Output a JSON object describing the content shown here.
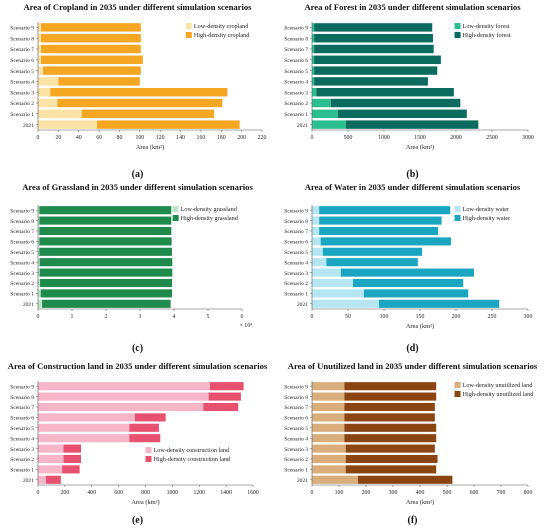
{
  "chart_data": [
    {
      "type": "bar",
      "orientation": "horizontal",
      "stacked": true,
      "panel_label": "(a)",
      "title": "Area of Cropland in 2035 under different simulation scenarios",
      "xlabel": "Area (km²)",
      "ylabel": "",
      "categories": [
        "2021",
        "Scenario 1",
        "Scenario 2",
        "Scenario 3",
        "Scenario 4",
        "Scenario 5",
        "Scenario 6",
        "Scenario 7",
        "Scenario 8",
        "Scenario 9"
      ],
      "xlim": [
        0,
        220
      ],
      "xticks": [
        "0",
        "20",
        "40",
        "60",
        "80",
        "100",
        "120",
        "140",
        "160",
        "180",
        "200",
        "220"
      ],
      "xmultiplier": "",
      "legend_position": "top-right",
      "series": [
        {
          "name": "Low-density cropland",
          "color": "#fbe3a5",
          "values": [
            58,
            43,
            19,
            12,
            20,
            5,
            3,
            3,
            3,
            3
          ]
        },
        {
          "name": "High-density cropland",
          "color": "#f5a623",
          "values": [
            140,
            130,
            162,
            174,
            80,
            96,
            100,
            98,
            98,
            98
          ]
        }
      ]
    },
    {
      "type": "bar",
      "orientation": "horizontal",
      "stacked": true,
      "panel_label": "(b)",
      "title": "Area of Forest in 2035 under different simulation scenarios",
      "xlabel": "Area (km²)",
      "ylabel": "",
      "categories": [
        "2021",
        "Scenario 1",
        "Scenario 2",
        "Scenario 3",
        "Scenario 4",
        "Scenario 5",
        "Scenario 6",
        "Scenario 7",
        "Scenario 8",
        "Scenario 9"
      ],
      "xlim": [
        0,
        3000
      ],
      "xticks": [
        "0",
        "500",
        "1000",
        "1500",
        "2000",
        "2500",
        "3000"
      ],
      "xmultiplier": "",
      "legend_position": "top-right",
      "series": [
        {
          "name": "Low-density forest",
          "color": "#2bbf8f",
          "values": [
            470,
            360,
            260,
            60,
            30,
            30,
            30,
            30,
            30,
            30
          ]
        },
        {
          "name": "High-density forest",
          "color": "#0b6b5e",
          "values": [
            1840,
            1790,
            1800,
            1910,
            1580,
            1710,
            1760,
            1660,
            1650,
            1640
          ]
        }
      ]
    },
    {
      "type": "bar",
      "orientation": "horizontal",
      "stacked": true,
      "panel_label": "(c)",
      "title": "Area of Grassland in 2035 under different simulation scenarios",
      "xlabel": "",
      "ylabel": "",
      "categories": [
        "2021",
        "Scenario 1",
        "Scenario 2",
        "Scenario 3",
        "Scenario 4",
        "Scenario 5",
        "Scenario 6",
        "Scenario 7",
        "Scenario 8",
        "Scenario 9"
      ],
      "xlim": [
        0,
        6
      ],
      "xticks": [
        "0",
        "1",
        "2",
        "3",
        "4",
        "5",
        "6"
      ],
      "xmultiplier": "× 10⁴",
      "legend_position": "top-right",
      "series": [
        {
          "name": "Low-density grassland",
          "color": "#bfe6c6",
          "values": [
            0.12,
            0.08,
            0.06,
            0.05,
            0.05,
            0.04,
            0.04,
            0.04,
            0.04,
            0.04
          ]
        },
        {
          "name": "High-density grassland",
          "color": "#1e8a4c",
          "values": [
            3.78,
            3.86,
            3.88,
            3.9,
            3.9,
            3.9,
            3.89,
            3.88,
            3.88,
            3.88
          ]
        }
      ]
    },
    {
      "type": "bar",
      "orientation": "horizontal",
      "stacked": true,
      "panel_label": "(d)",
      "title": "Area of Water in 2035 under different simulation scenarios",
      "xlabel": "Area (km²)",
      "ylabel": "",
      "categories": [
        "2021",
        "Scenario 1",
        "Scenario 2",
        "Scenario 3",
        "Scenario 4",
        "Scenario 5",
        "Scenario 6",
        "Scenario 7",
        "Scenario 8",
        "Scenario 9"
      ],
      "xlim": [
        0,
        300
      ],
      "xticks": [
        "0",
        "50",
        "100",
        "150",
        "200",
        "250",
        "300"
      ],
      "xmultiplier": "",
      "legend_position": "top-right",
      "series": [
        {
          "name": "Low-density water",
          "color": "#b5e6f2",
          "values": [
            93,
            72,
            57,
            40,
            20,
            15,
            12,
            10,
            10,
            10
          ]
        },
        {
          "name": "High-density water",
          "color": "#1aa5c0",
          "values": [
            167,
            145,
            153,
            185,
            127,
            138,
            181,
            165,
            170,
            182
          ]
        }
      ]
    },
    {
      "type": "bar",
      "orientation": "horizontal",
      "stacked": true,
      "panel_label": "(e)",
      "title": "Area of Construction land in 2035 under different simulation scenarios",
      "xlabel": "Area (km²)",
      "ylabel": "",
      "categories": [
        "2021",
        "Scenario 1",
        "Scenario 2",
        "Scenario 3",
        "Scenario 4",
        "Scenario 5",
        "Scenario 6",
        "Scenario 7",
        "Scenario 8",
        "Scenario 9"
      ],
      "xlim": [
        0,
        1600
      ],
      "xticks": [
        "0",
        "200",
        "400",
        "600",
        "800",
        "1000",
        "1200",
        "1400",
        "1600"
      ],
      "xmultiplier": "",
      "legend_position": "bottom-right",
      "series": [
        {
          "name": "Low-density construction land",
          "color": "#f7b5c8",
          "values": [
            60,
            180,
            190,
            190,
            680,
            680,
            720,
            1230,
            1270,
            1280
          ]
        },
        {
          "name": "High-density construction land",
          "color": "#e8506f",
          "values": [
            110,
            130,
            130,
            130,
            230,
            220,
            230,
            260,
            240,
            250
          ]
        }
      ]
    },
    {
      "type": "bar",
      "orientation": "horizontal",
      "stacked": true,
      "panel_label": "(f)",
      "title": "Area of Unutilized land in 2035 under different simulation scenarios",
      "xlabel": "Area (km²)",
      "ylabel": "",
      "categories": [
        "2021",
        "Scenario 1",
        "Scenario 2",
        "Scenario 3",
        "Scenario 4",
        "Scenario 5",
        "Scenario 6",
        "Scenario 7",
        "Scenario 8",
        "Scenario 9"
      ],
      "xlim": [
        0,
        800
      ],
      "xticks": [
        "0",
        "100",
        "200",
        "300",
        "400",
        "500",
        "600",
        "700",
        "800"
      ],
      "xmultiplier": "",
      "legend_position": "top-right",
      "series": [
        {
          "name": "Low-density unutilized land",
          "color": "#d9ad7c",
          "values": [
            170,
            125,
            125,
            125,
            120,
            120,
            120,
            120,
            120,
            120
          ]
        },
        {
          "name": "High-density unutilized land",
          "color": "#8b4513",
          "values": [
            350,
            335,
            340,
            330,
            340,
            340,
            335,
            335,
            340,
            340
          ]
        }
      ]
    }
  ]
}
